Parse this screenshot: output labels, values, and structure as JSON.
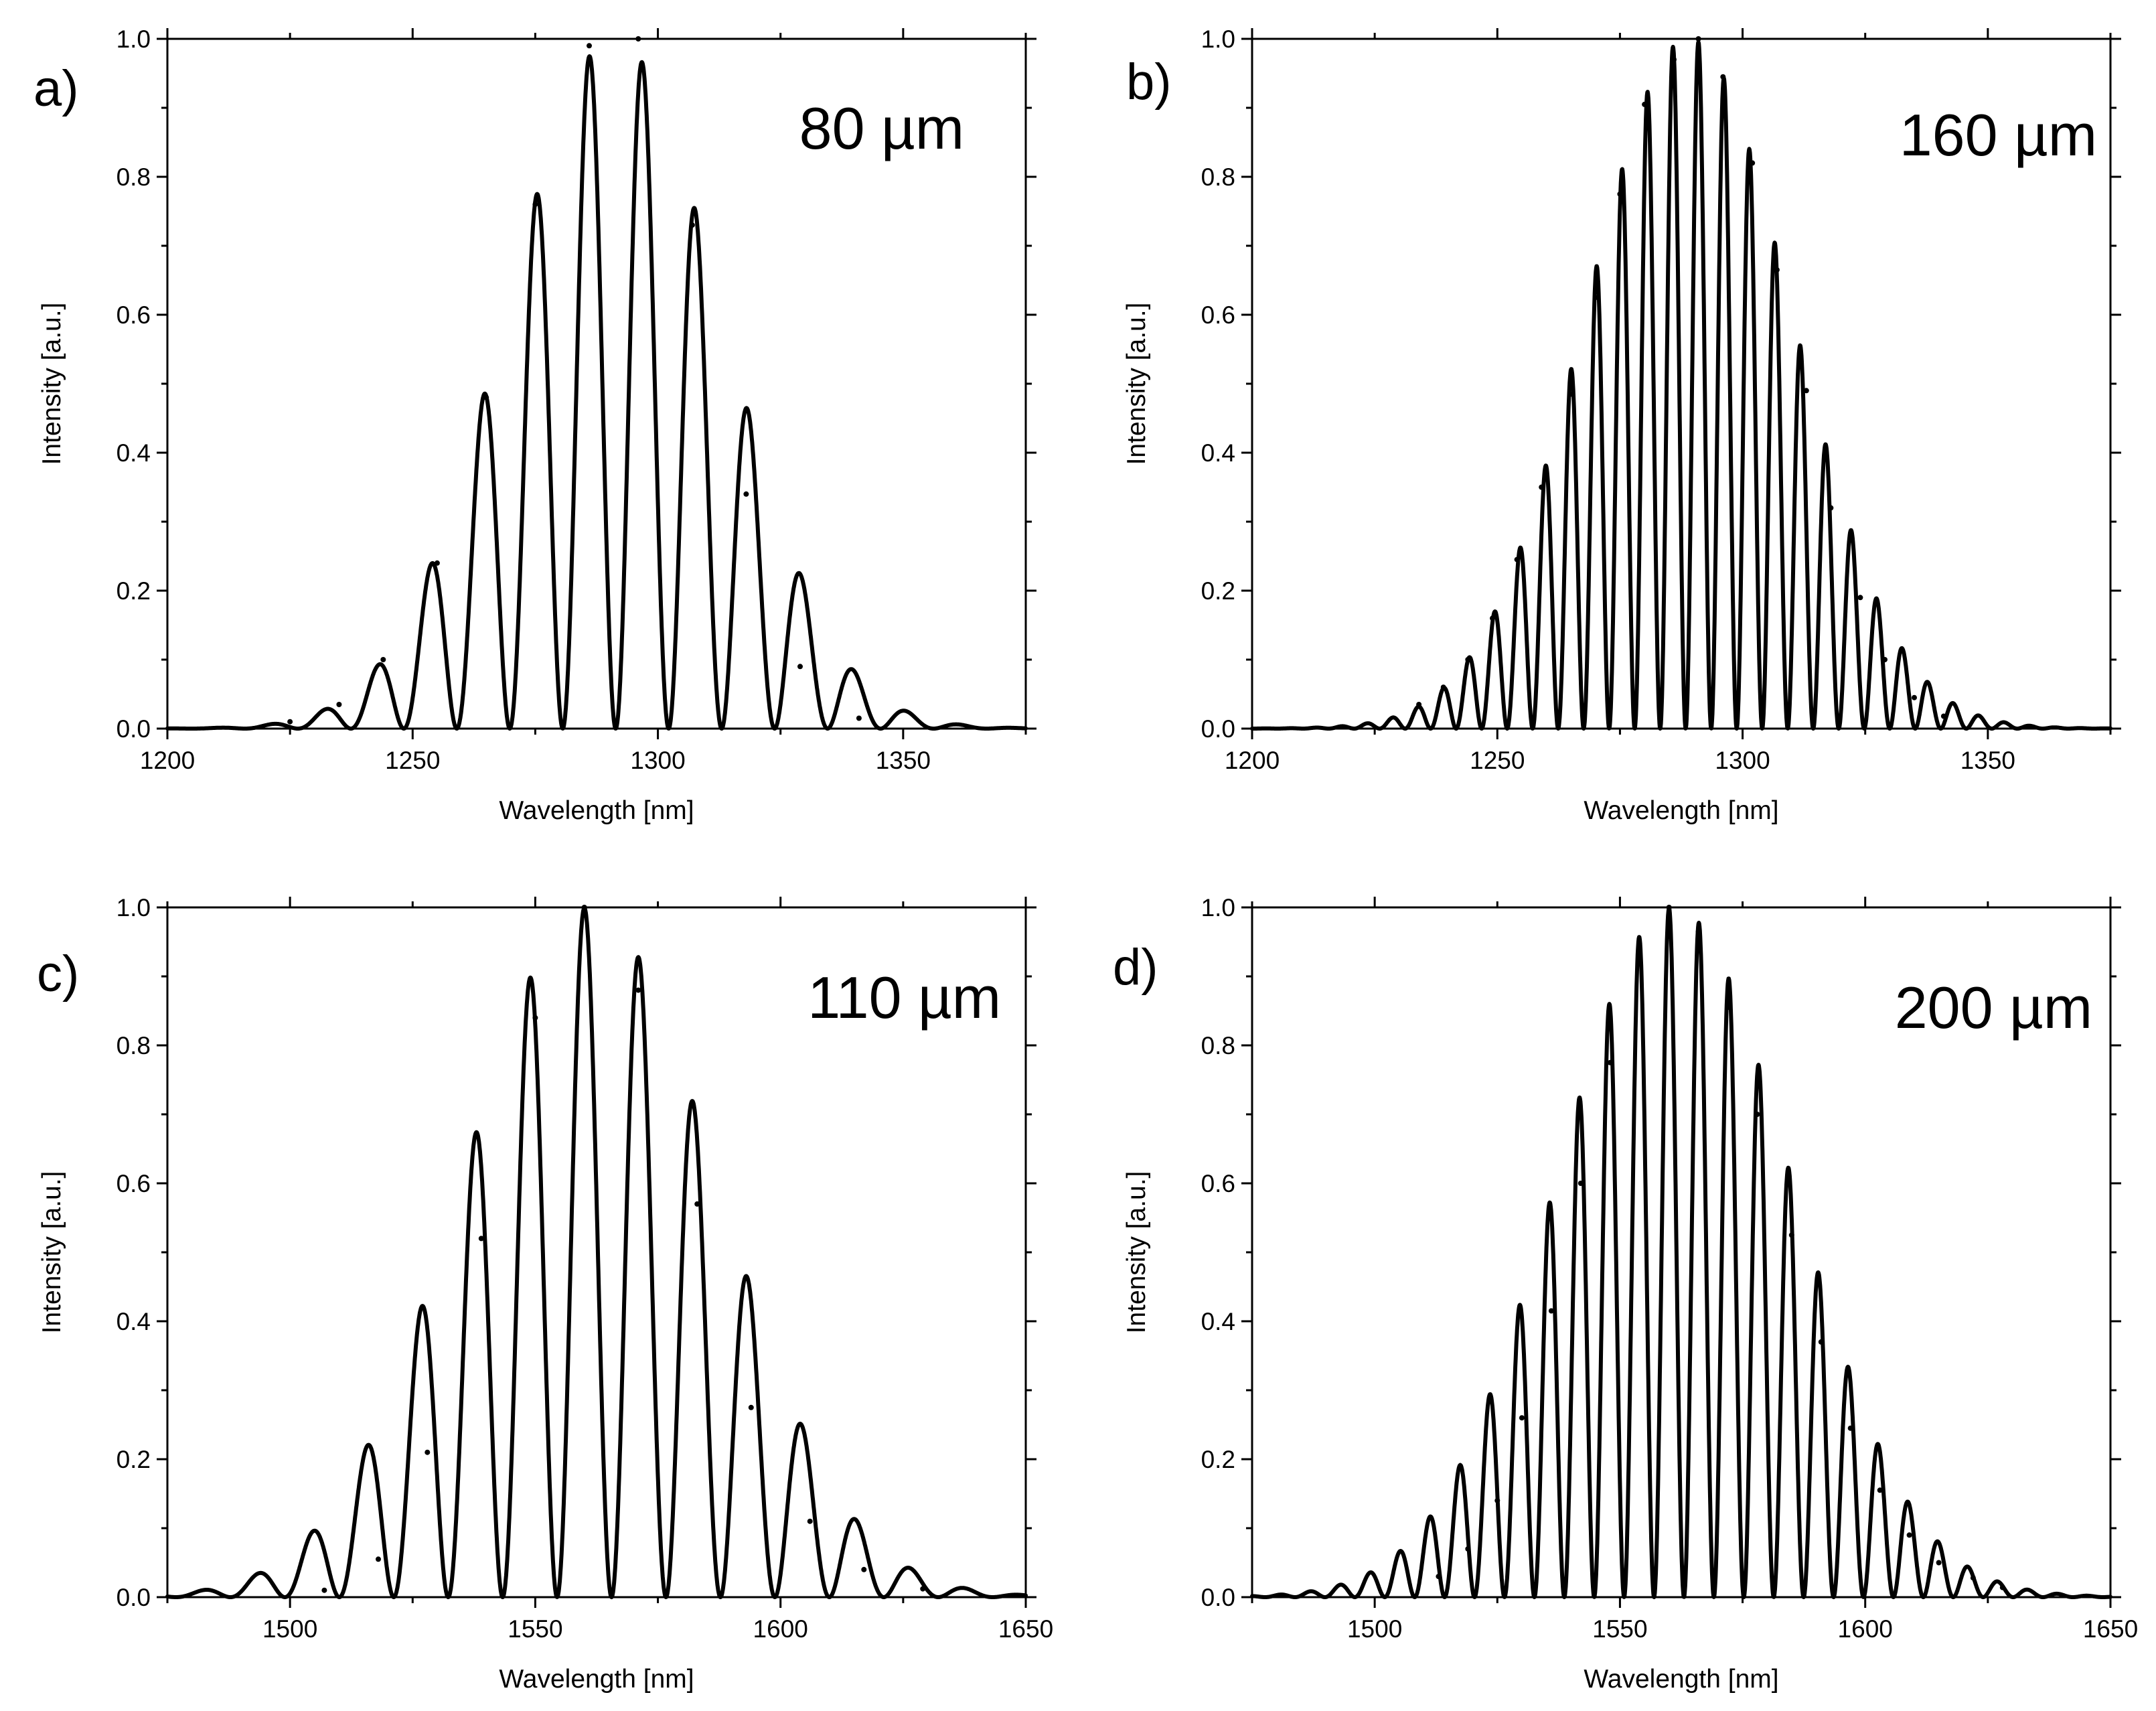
{
  "chart_data": [
    {
      "id": "a",
      "type": "line",
      "panel_label": "a)",
      "thickness_label": "80 µm",
      "xlabel": "Wavelength [nm]",
      "ylabel": "Intensity [a.u.]",
      "xlim": [
        1200,
        1375
      ],
      "ylim": [
        0,
        1.0
      ],
      "x_ticks": [
        1200,
        1250,
        1300,
        1350
      ],
      "x_minor_ticks": [
        1225,
        1275,
        1325,
        1375
      ],
      "y_ticks": [
        "0.0",
        "0.2",
        "0.4",
        "0.6",
        "0.8",
        "1.0"
      ],
      "y_minor_ticks": [
        0.1,
        0.3,
        0.5,
        0.7,
        0.9
      ],
      "envelope_center": 1291,
      "envelope_sigma": 22,
      "fringe_period": 10.8,
      "fringe_phase": 1286,
      "peaks": [
        {
          "x": 1225,
          "y": 0.01
        },
        {
          "x": 1235,
          "y": 0.035
        },
        {
          "x": 1244,
          "y": 0.1
        },
        {
          "x": 1255,
          "y": 0.24
        },
        {
          "x": 1265,
          "y": 0.48
        },
        {
          "x": 1275,
          "y": 0.76
        },
        {
          "x": 1286,
          "y": 0.99
        },
        {
          "x": 1296,
          "y": 1.0
        },
        {
          "x": 1307,
          "y": 0.73
        },
        {
          "x": 1318,
          "y": 0.34
        },
        {
          "x": 1329,
          "y": 0.09
        },
        {
          "x": 1341,
          "y": 0.015
        }
      ]
    },
    {
      "id": "b",
      "type": "line",
      "panel_label": "b)",
      "thickness_label": "160 µm",
      "xlabel": "Wavelength [nm]",
      "ylabel": "Intensity [a.u.]",
      "xlim": [
        1200,
        1375
      ],
      "ylim": [
        0,
        1.0
      ],
      "x_ticks": [
        1200,
        1250,
        1300,
        1350
      ],
      "x_minor_ticks": [
        1225,
        1275,
        1325,
        1375
      ],
      "y_ticks": [
        "0.0",
        "0.2",
        "0.4",
        "0.6",
        "0.8",
        "1.0"
      ],
      "y_minor_ticks": [
        0.1,
        0.3,
        0.5,
        0.7,
        0.9
      ],
      "envelope_center": 1289,
      "envelope_sigma": 21,
      "fringe_period": 5.2,
      "fringe_phase": 1291,
      "peaks": [
        {
          "x": 1234,
          "y": 0.035
        },
        {
          "x": 1239,
          "y": 0.06
        },
        {
          "x": 1244,
          "y": 0.1
        },
        {
          "x": 1249,
          "y": 0.16
        },
        {
          "x": 1254,
          "y": 0.245
        },
        {
          "x": 1259,
          "y": 0.35
        },
        {
          "x": 1265,
          "y": 0.485
        },
        {
          "x": 1270,
          "y": 0.625
        },
        {
          "x": 1275,
          "y": 0.775
        },
        {
          "x": 1280,
          "y": 0.905
        },
        {
          "x": 1286,
          "y": 0.97
        },
        {
          "x": 1291,
          "y": 1.0
        },
        {
          "x": 1296,
          "y": 0.945
        },
        {
          "x": 1302,
          "y": 0.82
        },
        {
          "x": 1307,
          "y": 0.665
        },
        {
          "x": 1313,
          "y": 0.49
        },
        {
          "x": 1318,
          "y": 0.32
        },
        {
          "x": 1324,
          "y": 0.19
        },
        {
          "x": 1329,
          "y": 0.1
        },
        {
          "x": 1335,
          "y": 0.045
        },
        {
          "x": 1341,
          "y": 0.018
        }
      ]
    },
    {
      "id": "c",
      "type": "line",
      "panel_label": "c)",
      "thickness_label": "110 µm",
      "xlabel": "Wavelength [nm]",
      "ylabel": "Intensity [a.u.]",
      "xlim": [
        1475,
        1650
      ],
      "ylim": [
        0,
        1.0
      ],
      "x_ticks": [
        1500,
        1550,
        1600,
        1650
      ],
      "x_minor_ticks": [
        1475,
        1525,
        1575,
        1625
      ],
      "y_ticks": [
        "0.0",
        "0.2",
        "0.4",
        "0.6",
        "0.8",
        "1.0"
      ],
      "y_minor_ticks": [
        0.1,
        0.3,
        0.5,
        0.7,
        0.9
      ],
      "envelope_center": 1561,
      "envelope_sigma": 26,
      "fringe_period": 11.1,
      "fringe_phase": 1560,
      "peaks": [
        {
          "x": 1507,
          "y": 0.01
        },
        {
          "x": 1518,
          "y": 0.055
        },
        {
          "x": 1528,
          "y": 0.21
        },
        {
          "x": 1539,
          "y": 0.52
        },
        {
          "x": 1550,
          "y": 0.84
        },
        {
          "x": 1560,
          "y": 1.0
        },
        {
          "x": 1571,
          "y": 0.88
        },
        {
          "x": 1583,
          "y": 0.57
        },
        {
          "x": 1594,
          "y": 0.275
        },
        {
          "x": 1606,
          "y": 0.11
        },
        {
          "x": 1617,
          "y": 0.04
        },
        {
          "x": 1629,
          "y": 0.012
        }
      ]
    },
    {
      "id": "d",
      "type": "line",
      "panel_label": "d)",
      "thickness_label": "200 µm",
      "xlabel": "Wavelength [nm]",
      "ylabel": "Intensity [a.u.]",
      "xlim": [
        1475,
        1650
      ],
      "ylim": [
        0,
        1.0
      ],
      "x_ticks": [
        1500,
        1550,
        1600,
        1650
      ],
      "x_minor_ticks": [
        1475,
        1525,
        1575,
        1625
      ],
      "y_ticks": [
        "0.0",
        "0.2",
        "0.4",
        "0.6",
        "0.8",
        "1.0"
      ],
      "y_minor_ticks": [
        0.1,
        0.3,
        0.5,
        0.7,
        0.9
      ],
      "envelope_center": 1561,
      "envelope_sigma": 24,
      "fringe_period": 6.1,
      "fringe_phase": 1560,
      "peaks": [
        {
          "x": 1513,
          "y": 0.03
        },
        {
          "x": 1519,
          "y": 0.07
        },
        {
          "x": 1525,
          "y": 0.14
        },
        {
          "x": 1530,
          "y": 0.26
        },
        {
          "x": 1536,
          "y": 0.415
        },
        {
          "x": 1542,
          "y": 0.6
        },
        {
          "x": 1548,
          "y": 0.775
        },
        {
          "x": 1554,
          "y": 0.93
        },
        {
          "x": 1560,
          "y": 1.0
        },
        {
          "x": 1566,
          "y": 0.965
        },
        {
          "x": 1572,
          "y": 0.855
        },
        {
          "x": 1578,
          "y": 0.7
        },
        {
          "x": 1585,
          "y": 0.525
        },
        {
          "x": 1591,
          "y": 0.37
        },
        {
          "x": 1597,
          "y": 0.245
        },
        {
          "x": 1603,
          "y": 0.155
        },
        {
          "x": 1609,
          "y": 0.09
        },
        {
          "x": 1615,
          "y": 0.05
        },
        {
          "x": 1622,
          "y": 0.028
        },
        {
          "x": 1628,
          "y": 0.014
        }
      ]
    }
  ]
}
